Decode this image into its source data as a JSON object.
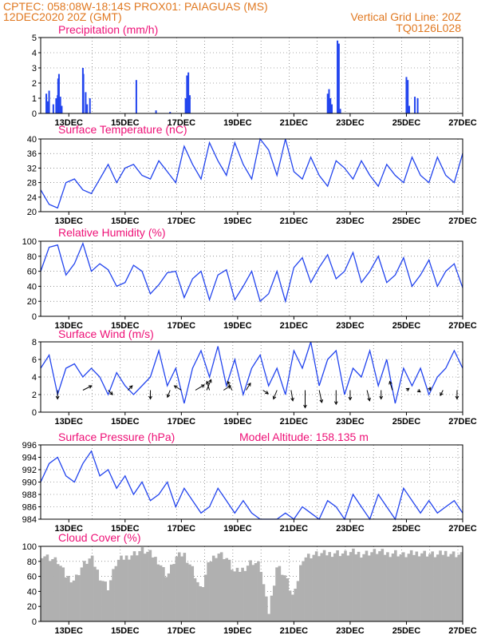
{
  "header": {
    "line1_left": "CPTEC:   058:08W-18:14S   PROX01: PAIAGUAS (MS)",
    "line2_left": "12DEC2020 20Z (GMT)",
    "line2_right": "Vertical Grid Line: 20Z",
    "line3_right": "TQ0126L028"
  },
  "x_labels": [
    "13DEC",
    "15DEC",
    "17DEC",
    "19DEC",
    "21DEC",
    "23DEC",
    "25DEC",
    "27DEC"
  ],
  "colors": {
    "header": "#e07820",
    "title": "#ee1177",
    "line": "#2244ee",
    "bar": "#2244ee",
    "cloud": "#b0b0b0",
    "grid": "#555555"
  },
  "chart_data": [
    {
      "type": "bar",
      "title": "Precipitation (mm/h)",
      "ylim": [
        0,
        5
      ],
      "yticks": [
        0,
        1,
        2,
        3,
        4,
        5
      ],
      "x": [
        12.2,
        12.25,
        12.3,
        12.45,
        12.55,
        12.6,
        12.62,
        12.65,
        12.7,
        12.75,
        13.5,
        13.52,
        13.6,
        13.65,
        13.75,
        15.4,
        16.1,
        16.6,
        17.15,
        17.2,
        17.25,
        17.3,
        22.2,
        22.25,
        22.3,
        22.35,
        22.55,
        22.6,
        22.65,
        25.0,
        25.05,
        25.1,
        25.3,
        25.4
      ],
      "values": [
        1.3,
        0.8,
        1.5,
        0.6,
        1.0,
        1.2,
        2.3,
        2.6,
        1.1,
        0.5,
        3.0,
        2.6,
        1.4,
        0.6,
        1.0,
        2.2,
        0.2,
        0.1,
        1.0,
        2.5,
        2.7,
        1.2,
        1.3,
        1.6,
        1.0,
        0.6,
        4.8,
        4.6,
        0.3,
        2.4,
        2.2,
        0.5,
        1.1,
        1.0
      ]
    },
    {
      "type": "line",
      "title": "Surface Temperature (nC)",
      "ylim": [
        20,
        40
      ],
      "yticks": [
        20,
        24,
        28,
        32,
        36,
        40
      ],
      "x": [
        12,
        12.3,
        12.6,
        12.9,
        13.2,
        13.5,
        13.8,
        14.1,
        14.4,
        14.7,
        15.0,
        15.3,
        15.6,
        15.9,
        16.2,
        16.5,
        16.8,
        17.1,
        17.4,
        17.7,
        18.0,
        18.3,
        18.6,
        18.9,
        19.2,
        19.5,
        19.8,
        20.1,
        20.4,
        20.7,
        21.0,
        21.3,
        21.6,
        21.9,
        22.2,
        22.5,
        22.8,
        23.1,
        23.4,
        23.7,
        24.0,
        24.3,
        24.6,
        24.9,
        25.2,
        25.5,
        25.8,
        26.1,
        26.4,
        26.7,
        27.0
      ],
      "values": [
        26,
        22,
        21,
        28,
        29,
        26,
        25,
        29,
        33,
        28,
        32,
        33,
        30,
        29,
        34,
        31,
        28,
        38,
        33,
        29,
        39,
        34,
        30,
        39,
        33,
        29,
        40,
        37,
        30,
        40,
        31,
        29,
        35,
        30,
        27,
        34,
        32,
        29,
        34,
        30,
        27,
        33,
        30,
        28,
        35,
        30,
        28,
        35,
        30,
        28,
        36
      ]
    },
    {
      "type": "line",
      "title": "Relative Humidity (%)",
      "ylim": [
        0,
        100
      ],
      "yticks": [
        0,
        20,
        40,
        60,
        80,
        100
      ],
      "x": [
        12,
        12.3,
        12.6,
        12.9,
        13.2,
        13.5,
        13.8,
        14.1,
        14.4,
        14.7,
        15.0,
        15.3,
        15.6,
        15.9,
        16.2,
        16.5,
        16.8,
        17.1,
        17.4,
        17.7,
        18.0,
        18.3,
        18.6,
        18.9,
        19.2,
        19.5,
        19.8,
        20.1,
        20.4,
        20.7,
        21.0,
        21.3,
        21.6,
        21.9,
        22.2,
        22.5,
        22.8,
        23.1,
        23.4,
        23.7,
        24.0,
        24.3,
        24.6,
        24.9,
        25.2,
        25.5,
        25.8,
        26.1,
        26.4,
        26.7,
        27.0
      ],
      "values": [
        60,
        92,
        95,
        55,
        70,
        97,
        60,
        70,
        62,
        40,
        45,
        68,
        60,
        30,
        42,
        58,
        60,
        25,
        50,
        60,
        22,
        55,
        62,
        22,
        40,
        60,
        20,
        30,
        60,
        20,
        65,
        78,
        45,
        65,
        82,
        50,
        60,
        85,
        45,
        60,
        80,
        45,
        55,
        78,
        40,
        55,
        75,
        40,
        60,
        70,
        38
      ]
    },
    {
      "type": "line",
      "title": "Surface Wind (m/s)",
      "ylim": [
        0,
        8
      ],
      "yticks": [
        0,
        2,
        4,
        6,
        8
      ],
      "x": [
        12,
        12.3,
        12.6,
        12.9,
        13.2,
        13.5,
        13.8,
        14.1,
        14.4,
        14.7,
        15.0,
        15.3,
        15.6,
        15.9,
        16.2,
        16.5,
        16.8,
        17.1,
        17.4,
        17.7,
        18.0,
        18.3,
        18.6,
        18.9,
        19.2,
        19.5,
        19.8,
        20.1,
        20.4,
        20.7,
        21.0,
        21.3,
        21.6,
        21.9,
        22.2,
        22.5,
        22.8,
        23.1,
        23.4,
        23.7,
        24.0,
        24.3,
        24.6,
        24.9,
        25.2,
        25.5,
        25.8,
        26.1,
        26.4,
        26.7,
        27.0
      ],
      "values": [
        5,
        6.5,
        2,
        5,
        5.5,
        4,
        5,
        4,
        2,
        4.5,
        3,
        2,
        3,
        4,
        7,
        3,
        5,
        1,
        5,
        7,
        4,
        7.5,
        3,
        6,
        2,
        5,
        6.5,
        3,
        5,
        2,
        7,
        5,
        8,
        3,
        6,
        7,
        2,
        5,
        4,
        7,
        3,
        6,
        1,
        5,
        3,
        5,
        2,
        4,
        5,
        7,
        5
      ],
      "arrows": [
        {
          "x": 12.6,
          "dx": 0,
          "dy": -1
        },
        {
          "x": 13.5,
          "dx": 1,
          "dy": 0.5
        },
        {
          "x": 14.4,
          "dx": 0.5,
          "dy": -0.5
        },
        {
          "x": 15.1,
          "dx": 0.5,
          "dy": 0.5
        },
        {
          "x": 15.9,
          "dx": 0,
          "dy": -1
        },
        {
          "x": 16.6,
          "dx": -0.3,
          "dy": -0.8
        },
        {
          "x": 17.0,
          "dx": -0.8,
          "dy": 0.5
        },
        {
          "x": 17.5,
          "dx": 1,
          "dy": 0.6
        },
        {
          "x": 17.9,
          "dx": 0.5,
          "dy": 1.2
        },
        {
          "x": 18.0,
          "dx": -0.3,
          "dy": 1.0
        },
        {
          "x": 18.5,
          "dx": 0.8,
          "dy": 0.5
        },
        {
          "x": 18.8,
          "dx": -0.5,
          "dy": 1.0
        },
        {
          "x": 19.3,
          "dx": 0.5,
          "dy": 0.8
        },
        {
          "x": 19.9,
          "dx": 0.6,
          "dy": -0.4
        },
        {
          "x": 20.4,
          "dx": -0.4,
          "dy": -1.0
        },
        {
          "x": 20.9,
          "dx": 0.2,
          "dy": -1.2
        },
        {
          "x": 21.4,
          "dx": 0,
          "dy": -2.0
        },
        {
          "x": 21.9,
          "dx": 0.3,
          "dy": -1.4
        },
        {
          "x": 22.5,
          "dx": 0,
          "dy": -1.6
        },
        {
          "x": 23.0,
          "dx": 0,
          "dy": -1.1
        },
        {
          "x": 23.6,
          "dx": 0.3,
          "dy": -1.2
        },
        {
          "x": 24.1,
          "dx": 0,
          "dy": -1.0
        },
        {
          "x": 24.5,
          "dx": -0.3,
          "dy": 1.0
        },
        {
          "x": 25.0,
          "dx": 0.3,
          "dy": 0.2
        },
        {
          "x": 25.4,
          "dx": 0.3,
          "dy": -0.2
        },
        {
          "x": 25.8,
          "dx": 0.2,
          "dy": 0.3
        },
        {
          "x": 26.3,
          "dx": -0.3,
          "dy": -0.6
        },
        {
          "x": 26.8,
          "dx": 0,
          "dy": -1.0
        }
      ]
    },
    {
      "type": "line",
      "title": "Surface Pressure (hPa)",
      "subtitle": "Model Altitude: 158.135 m",
      "ylim": [
        984,
        996
      ],
      "yticks": [
        984,
        986,
        988,
        990,
        992,
        994,
        996
      ],
      "x": [
        12,
        12.3,
        12.6,
        12.9,
        13.2,
        13.5,
        13.8,
        14.1,
        14.4,
        14.7,
        15.0,
        15.3,
        15.6,
        15.9,
        16.2,
        16.5,
        16.8,
        17.1,
        17.4,
        17.7,
        18.0,
        18.3,
        18.6,
        18.9,
        19.2,
        19.5,
        19.8,
        20.1,
        20.4,
        20.7,
        21.0,
        21.3,
        21.6,
        21.9,
        22.2,
        22.5,
        22.8,
        23.1,
        23.4,
        23.7,
        24.0,
        24.3,
        24.6,
        24.9,
        25.2,
        25.5,
        25.8,
        26.1,
        26.4,
        26.7,
        27.0
      ],
      "values": [
        990,
        993,
        994,
        991,
        990,
        993,
        995,
        991,
        992,
        989,
        991,
        988,
        990,
        987,
        988,
        990,
        986,
        989,
        987,
        985,
        986,
        989,
        987,
        985,
        987,
        985,
        984,
        984,
        984,
        985,
        984,
        986,
        985,
        984,
        987,
        986,
        984,
        988,
        986,
        984,
        988,
        986,
        984,
        989,
        987,
        985,
        987,
        985,
        986,
        987,
        985
      ]
    },
    {
      "type": "area",
      "title": "Cloud Cover (%)",
      "ylim": [
        0,
        100
      ],
      "yticks": [
        0,
        20,
        40,
        60,
        80,
        100
      ],
      "x": [
        12,
        12.3,
        12.6,
        12.9,
        13.2,
        13.5,
        13.8,
        14.1,
        14.4,
        14.7,
        15.0,
        15.3,
        15.6,
        15.9,
        16.2,
        16.5,
        16.8,
        17.1,
        17.4,
        17.7,
        18.0,
        18.3,
        18.6,
        18.9,
        19.2,
        19.5,
        19.8,
        20.1,
        20.4,
        20.7,
        21.0,
        21.3,
        21.6,
        21.9,
        22.2,
        22.5,
        22.8,
        23.1,
        23.4,
        23.7,
        24.0,
        24.3,
        24.6,
        24.9,
        25.2,
        25.5,
        25.8,
        26.1,
        26.4,
        26.7,
        27.0
      ],
      "values": [
        90,
        85,
        80,
        60,
        55,
        75,
        85,
        60,
        45,
        80,
        85,
        90,
        95,
        90,
        80,
        60,
        85,
        90,
        70,
        40,
        80,
        92,
        85,
        65,
        70,
        80,
        75,
        10,
        75,
        60,
        30,
        85,
        88,
        90,
        90,
        92,
        90,
        92,
        90,
        92,
        93,
        90,
        92,
        88,
        90,
        92,
        90,
        88,
        92,
        90,
        88
      ]
    }
  ]
}
